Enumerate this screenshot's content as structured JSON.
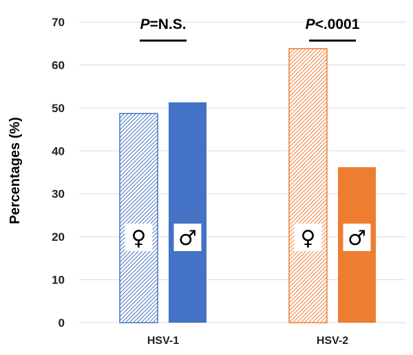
{
  "chart_data": {
    "type": "bar",
    "title": "",
    "xlabel": "",
    "ylabel": "Percentages (%)",
    "ylim": [
      0,
      70
    ],
    "yticks": [
      0,
      10,
      20,
      30,
      40,
      50,
      60,
      70
    ],
    "categories": [
      "HSV-1",
      "HSV-2"
    ],
    "grid": true,
    "legend": "none",
    "series": [
      {
        "name": "",
        "sex": "female",
        "symbol": "♀",
        "pattern": "hatched",
        "values": [
          48.7,
          63.8
        ]
      },
      {
        "name": "",
        "sex": "male",
        "symbol": "♂",
        "pattern": "solid",
        "values": [
          51.3,
          36.2
        ]
      }
    ],
    "category_colors": [
      "#4472c4",
      "#ed7d31"
    ],
    "significance": [
      {
        "italic": "P",
        "rest": "=N.S."
      },
      {
        "italic": "P",
        "rest": "<.0001"
      }
    ]
  }
}
